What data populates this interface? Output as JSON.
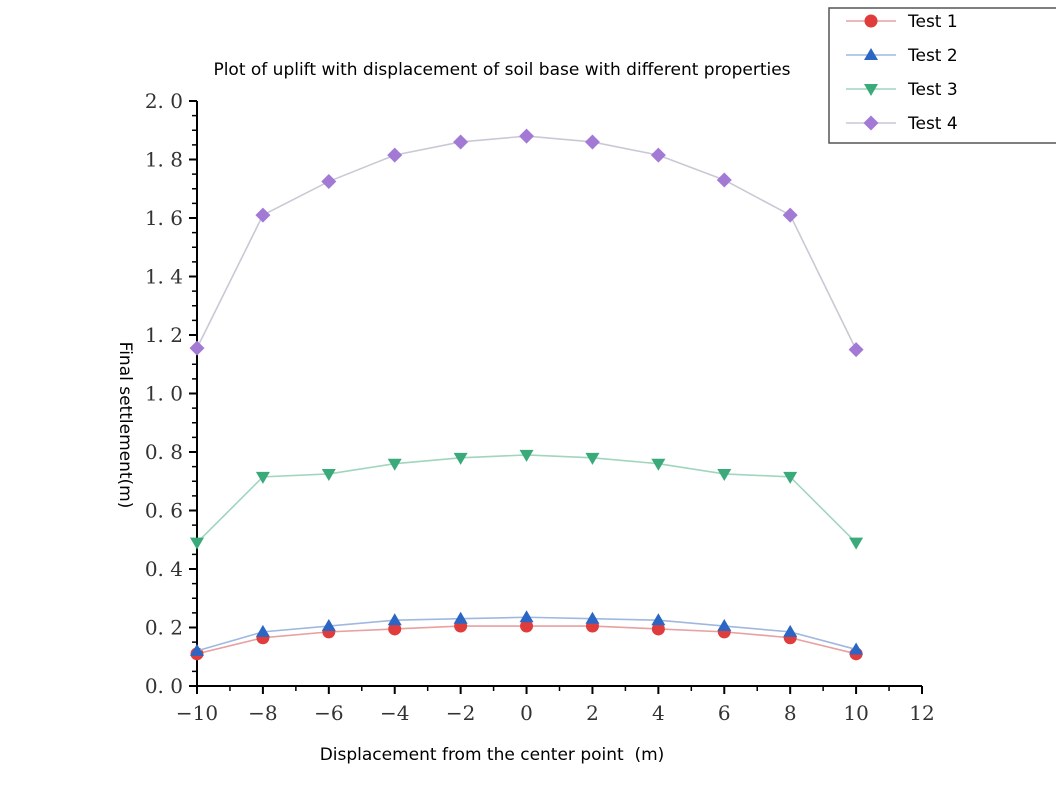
{
  "chart_data": {
    "type": "line",
    "title": "Plot of uplift with displacement of soil base with different properties",
    "xlabel": "Displacement from the center point  (m)",
    "ylabel": "Final settlement(m)",
    "xlim": [
      -10,
      12
    ],
    "ylim": [
      0,
      2.0
    ],
    "x_ticks": [
      "−10",
      "−8",
      "−6",
      "−4",
      "−2",
      "0",
      "2",
      "4",
      "6",
      "8",
      "10",
      "12"
    ],
    "y_ticks": [
      "0. 0",
      "0. 2",
      "0. 4",
      "0. 6",
      "0. 8",
      "1. 0",
      "1. 2",
      "1. 4",
      "1. 6",
      "1. 8",
      "2. 0"
    ],
    "x": [
      -10,
      -8,
      -6,
      -4,
      -2,
      0,
      2,
      4,
      6,
      8,
      10
    ],
    "series": [
      {
        "name": "Test 1",
        "marker": "circle",
        "color": "#e03c3c",
        "line_color": "#e8a0a0",
        "values": [
          0.11,
          0.165,
          0.185,
          0.195,
          0.205,
          0.205,
          0.205,
          0.195,
          0.185,
          0.165,
          0.11
        ]
      },
      {
        "name": "Test 2",
        "marker": "triangle-up",
        "color": "#2b66c4",
        "line_color": "#9fb8e0",
        "values": [
          0.12,
          0.185,
          0.205,
          0.225,
          0.23,
          0.235,
          0.23,
          0.225,
          0.205,
          0.185,
          0.125
        ]
      },
      {
        "name": "Test 3",
        "marker": "triangle-down",
        "color": "#3aaa7a",
        "line_color": "#a0d6bd",
        "values": [
          0.49,
          0.715,
          0.725,
          0.76,
          0.78,
          0.79,
          0.78,
          0.76,
          0.725,
          0.715,
          0.49
        ]
      },
      {
        "name": "Test 4",
        "marker": "diamond",
        "color": "#a27ad6",
        "line_color": "#c9c9d6",
        "values": [
          1.155,
          1.61,
          1.725,
          1.815,
          1.86,
          1.88,
          1.86,
          1.815,
          1.73,
          1.61,
          1.15
        ]
      }
    ],
    "legend_position": "top-right",
    "grid": false
  }
}
